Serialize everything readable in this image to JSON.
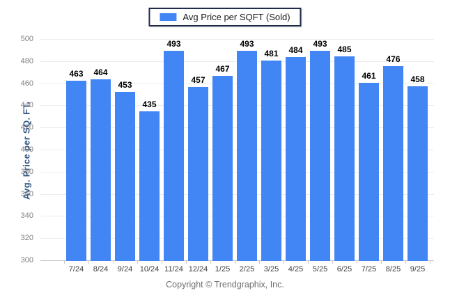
{
  "legend": {
    "label": "Avg Price per SQFT (Sold)",
    "swatch_color": "#4285F4",
    "position": "top-center"
  },
  "chart_data": {
    "type": "bar",
    "title": "",
    "categories": [
      "7/24",
      "8/24",
      "9/24",
      "10/24",
      "11/24",
      "12/24",
      "1/25",
      "2/25",
      "3/25",
      "4/25",
      "5/25",
      "6/25",
      "7/25",
      "8/25",
      "9/25"
    ],
    "series": [
      {
        "name": "Avg Price per SQFT (Sold)",
        "values": [
          463,
          464,
          453,
          435,
          493,
          457,
          467,
          493,
          481,
          484,
          493,
          485,
          461,
          476,
          458
        ]
      }
    ],
    "xlabel": "",
    "ylabel": "Avg. Price per SQ. FT.",
    "ylim": [
      300,
      500
    ],
    "ytick_step": 20,
    "ytick_labels": [
      "300",
      "320",
      "340",
      "360",
      "380",
      "400",
      "420",
      "440",
      "460",
      "480",
      "500"
    ],
    "grid": "horizontal",
    "value_labels_shown": true,
    "legend_position": "top-center",
    "bar_color": "#4285F4"
  },
  "colors": {
    "bar": "#4285F4",
    "axis_title": "#2F5486",
    "y_tick_label": "#808080",
    "x_tick_label": "#404040",
    "value_label": "#000000",
    "gridline": "#ececec",
    "baseline": "#c9c9c9",
    "legend_border": "#1e2a4a",
    "background": "#ffffff"
  },
  "footer": {
    "text": "Copyright © Trendgraphix, Inc."
  }
}
